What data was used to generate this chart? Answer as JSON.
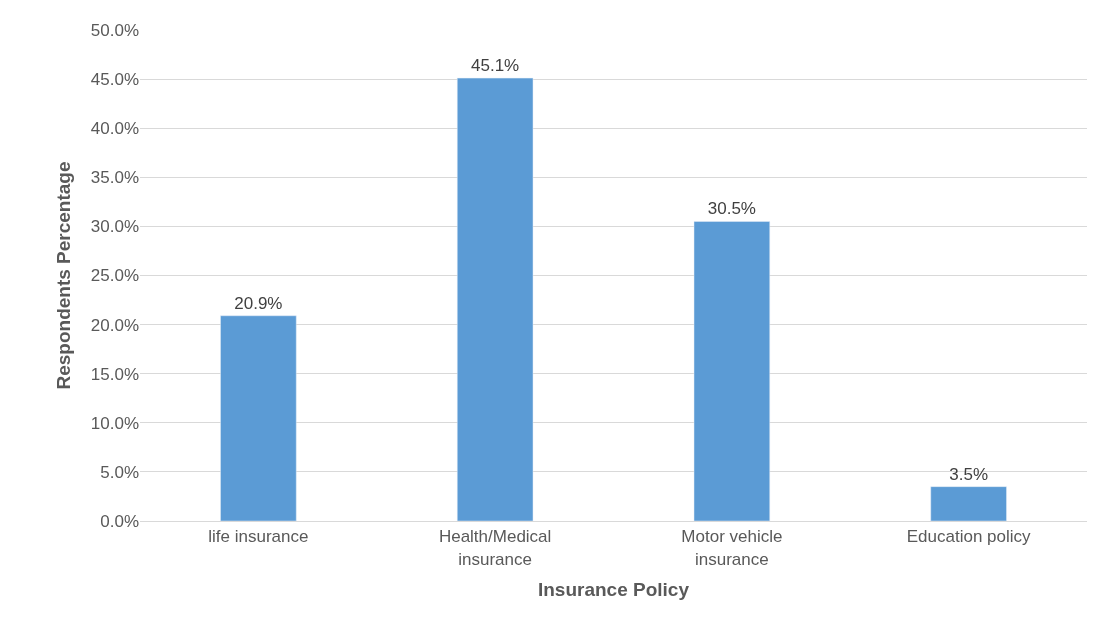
{
  "chart_data": {
    "type": "bar",
    "xlabel": "Insurance Policy",
    "ylabel": "Respondents Percentage",
    "categories": [
      "life insurance",
      "Health/Medical insurance",
      "Motor vehicle insurance",
      "Education policy"
    ],
    "values": [
      20.9,
      45.1,
      30.5,
      3.5
    ],
    "color": "#5b9bd5",
    "value_labels": [
      "20.9%",
      "45.1%",
      "30.5%",
      "3.5%"
    ],
    "ylim": [
      0,
      50
    ],
    "yticks": [
      {
        "value": 0,
        "label": "0.0%"
      },
      {
        "value": 5,
        "label": "5.0%"
      },
      {
        "value": 10,
        "label": "10.0%"
      },
      {
        "value": 15,
        "label": "15.0%"
      },
      {
        "value": 20,
        "label": "20.0%"
      },
      {
        "value": 25,
        "label": "25.0%"
      },
      {
        "value": 30,
        "label": "30.0%"
      },
      {
        "value": 35,
        "label": "35.0%"
      },
      {
        "value": 40,
        "label": "40.0%"
      },
      {
        "value": 45,
        "label": "45.0%"
      },
      {
        "value": 50,
        "label": "50.0%"
      }
    ],
    "grid": "y",
    "legend": false
  }
}
